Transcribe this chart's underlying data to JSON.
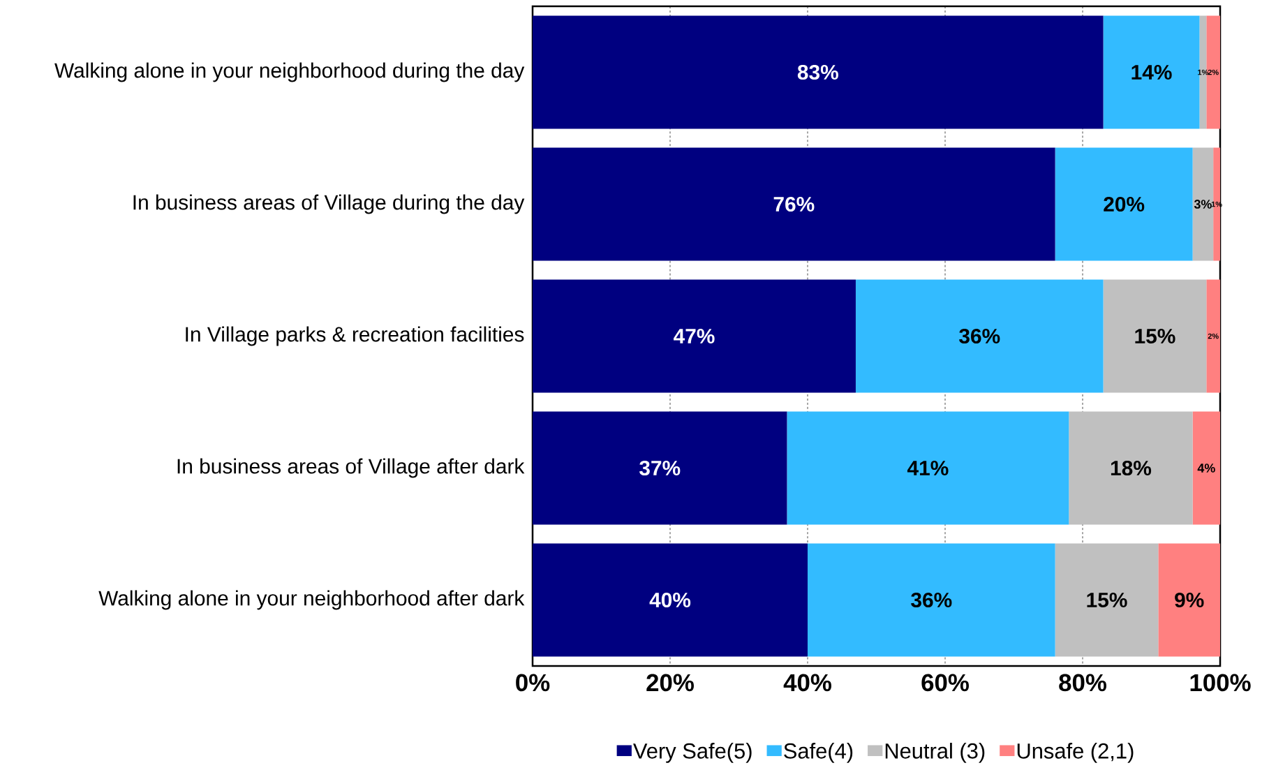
{
  "chart_data": {
    "type": "bar",
    "orientation": "horizontal",
    "stacked": true,
    "categories": [
      "Walking alone in your neighborhood during the day",
      "In business areas of Village during the day",
      "In Village parks & recreation facilities",
      "In business areas of Village after dark",
      "Walking alone in your neighborhood after dark"
    ],
    "series": [
      {
        "name": "Very Safe(5)",
        "color": "#000080",
        "values": [
          83,
          76,
          47,
          37,
          40
        ],
        "value_labels": [
          "83%",
          "76%",
          "47%",
          "37%",
          "40%"
        ]
      },
      {
        "name": "Safe(4)",
        "color": "#33bbff",
        "values": [
          14,
          20,
          36,
          41,
          36
        ],
        "value_labels": [
          "14%",
          "20%",
          "36%",
          "41%",
          "36%"
        ]
      },
      {
        "name": "Neutral (3)",
        "color": "#c0c0c0",
        "values": [
          1,
          3,
          15,
          18,
          15
        ],
        "value_labels": [
          "1%",
          "3%",
          "15%",
          "18%",
          "15%"
        ]
      },
      {
        "name": "Unsafe (2,1)",
        "color": "#ff8080",
        "values": [
          2,
          1,
          2,
          4,
          9
        ],
        "value_labels": [
          "2%",
          "1%",
          "2%",
          "4%",
          "9%"
        ]
      }
    ],
    "xlim": [
      0,
      100
    ],
    "xticks": [
      {
        "value": 0,
        "label": "0%"
      },
      {
        "value": 20,
        "label": "20%"
      },
      {
        "value": 40,
        "label": "40%"
      },
      {
        "value": 60,
        "label": "60%"
      },
      {
        "value": 80,
        "label": "80%"
      },
      {
        "value": 100,
        "label": "100%"
      }
    ],
    "grid": "x",
    "legend": "bottom"
  }
}
